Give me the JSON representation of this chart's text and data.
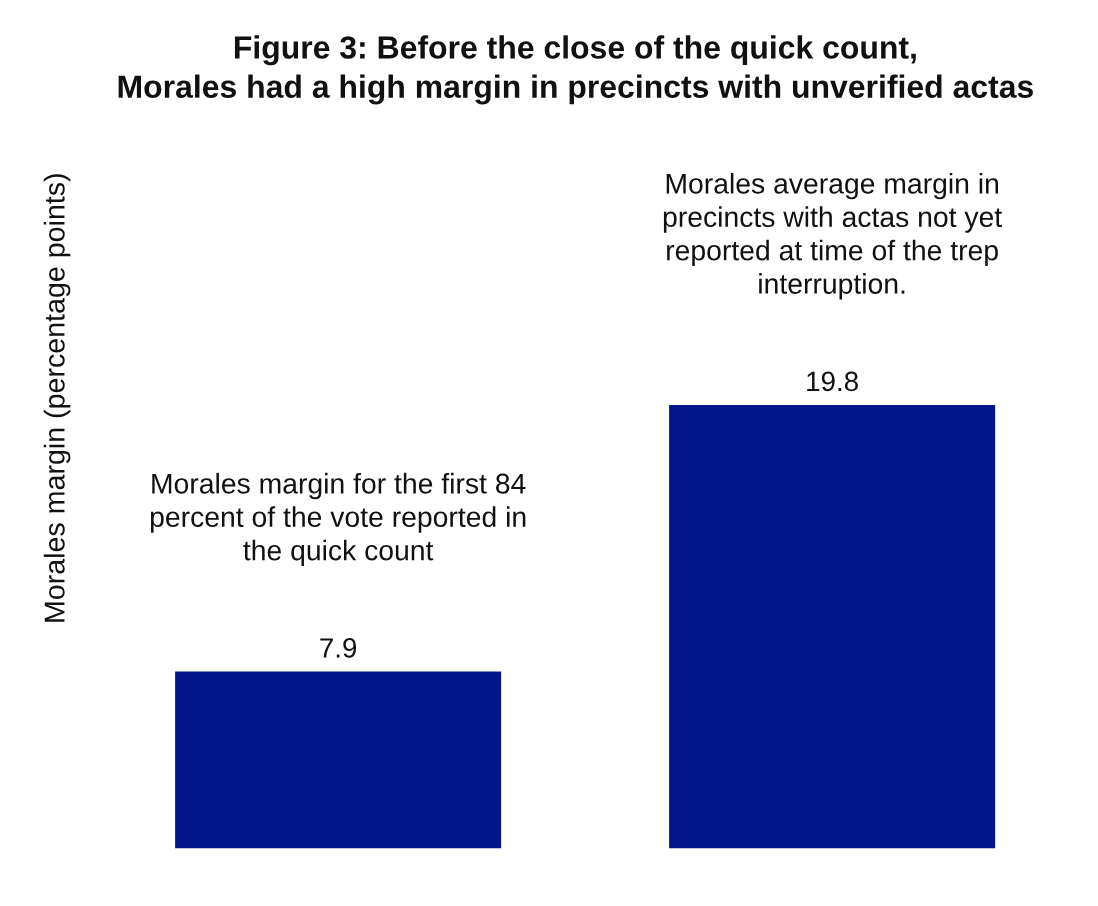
{
  "chart_data": {
    "type": "bar",
    "title": "Figure 3: Before the close of the quick count,\nMorales had a high margin in precincts with unverified actas",
    "ylabel": "Morales margin (percentage points)",
    "categories": [
      null,
      null
    ],
    "values": [
      7.9,
      19.8
    ],
    "color": "#00168a",
    "data_labels": true,
    "annotations": [
      "Morales margin for the first 84\npercent of the vote reported in\nthe quick count",
      "Morales average margin in\nprecincts with actas not yet\nreported at time of the trep\ninterruption."
    ]
  }
}
